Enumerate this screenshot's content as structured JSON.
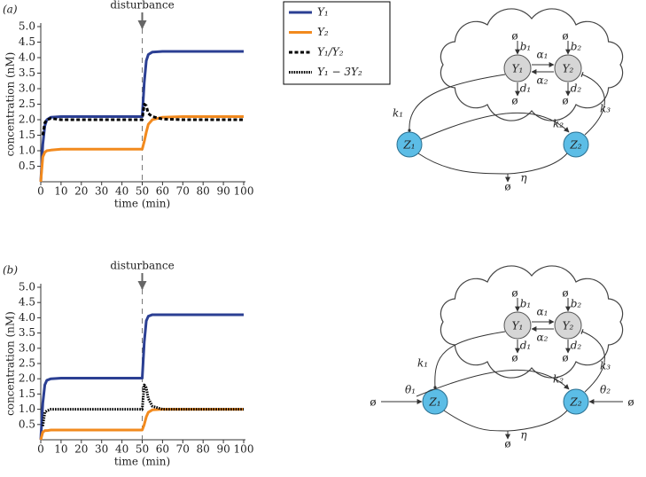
{
  "chart_data": [
    {
      "type": "line",
      "panel": "(a)",
      "ylabel": "concentration (nM)",
      "xlabel": "time (min)",
      "annotation": {
        "text": "disturbance",
        "x": 50
      },
      "xlim": [
        0,
        100
      ],
      "ylim": [
        0,
        5
      ],
      "xticks": [
        0,
        10,
        20,
        30,
        40,
        50,
        60,
        70,
        80,
        90,
        100
      ],
      "yticks": [
        0.5,
        {
          "value": 1,
          "label": "1.0"
        },
        1.5,
        {
          "value": 2,
          "label": "2.0"
        },
        2.5,
        {
          "value": 3,
          "label": "3.0"
        },
        3.5,
        {
          "value": 4,
          "label": "4.0"
        },
        4.5,
        {
          "value": 5,
          "label": "5.0"
        }
      ],
      "x": [
        0,
        1,
        2,
        3,
        5,
        10,
        20,
        30,
        40,
        50,
        51,
        52,
        53,
        55,
        60,
        70,
        80,
        90,
        100
      ],
      "series": [
        {
          "name": "Y₁",
          "color": "#2b3f93",
          "style": "solid",
          "values": [
            0,
            1.2,
            1.8,
            2.0,
            2.08,
            2.1,
            2.1,
            2.1,
            2.1,
            2.1,
            3.2,
            3.9,
            4.1,
            4.18,
            4.2,
            4.2,
            4.2,
            4.2,
            4.2
          ]
        },
        {
          "name": "Y₂",
          "color": "#f28a1e",
          "style": "solid",
          "values": [
            0,
            0.8,
            0.95,
            1.0,
            1.02,
            1.05,
            1.05,
            1.05,
            1.05,
            1.05,
            1.3,
            1.6,
            1.85,
            2.0,
            2.08,
            2.1,
            2.1,
            2.1,
            2.1
          ]
        },
        {
          "name": "Y₁/Y₂",
          "color": "#000000",
          "style": "dashed",
          "values": [
            null,
            1.5,
            1.9,
            2.0,
            2.04,
            2.0,
            2.0,
            2.0,
            2.0,
            2.0,
            2.5,
            2.45,
            2.2,
            2.1,
            2.02,
            2.0,
            2.0,
            2.0,
            2.0
          ]
        }
      ]
    },
    {
      "type": "line",
      "panel": "(b)",
      "ylabel": "concentration (nM)",
      "xlabel": "time (min)",
      "annotation": {
        "text": "disturbance",
        "x": 50
      },
      "xlim": [
        0,
        100
      ],
      "ylim": [
        0,
        5
      ],
      "xticks": [
        0,
        10,
        20,
        30,
        40,
        50,
        60,
        70,
        80,
        90,
        100
      ],
      "yticks": [
        0.5,
        {
          "value": 1,
          "label": "1.0"
        },
        1.5,
        {
          "value": 2,
          "label": "2.0"
        },
        2.5,
        {
          "value": 3,
          "label": "3.0"
        },
        3.5,
        {
          "value": 4,
          "label": "4.0"
        },
        4.5,
        {
          "value": 5,
          "label": "5.0"
        }
      ],
      "x": [
        0,
        1,
        2,
        3,
        5,
        10,
        20,
        30,
        40,
        50,
        51,
        52,
        53,
        55,
        60,
        70,
        80,
        90,
        100
      ],
      "series": [
        {
          "color": "#2b3f93",
          "style": "solid",
          "values": [
            0,
            1.2,
            1.8,
            1.95,
            2.0,
            2.02,
            2.02,
            2.02,
            2.02,
            2.02,
            3.2,
            3.9,
            4.05,
            4.1,
            4.1,
            4.1,
            4.1,
            4.1,
            4.1
          ]
        },
        {
          "color": "#f28a1e",
          "style": "solid",
          "values": [
            0,
            0.25,
            0.3,
            0.3,
            0.32,
            0.32,
            0.32,
            0.32,
            0.32,
            0.32,
            0.5,
            0.75,
            0.9,
            0.98,
            1.0,
            1.0,
            1.0,
            1.0,
            1.0
          ]
        },
        {
          "name": "Y₁ − 3Y₂",
          "color": "#000000",
          "style": "dotted",
          "values": [
            null,
            0.45,
            0.9,
            0.95,
            1.0,
            1.0,
            1.0,
            1.0,
            1.0,
            1.0,
            1.8,
            1.7,
            1.35,
            1.1,
            1.0,
            1.0,
            1.0,
            1.0,
            1.0
          ]
        }
      ]
    }
  ],
  "diagrams": [
    {
      "nodes": [
        "Y₁",
        "Y₂",
        "Z₁",
        "Z₂"
      ],
      "rates": [
        "b₁",
        "d₁",
        "b₂",
        "d₂",
        "α₁",
        "α₂",
        "k₁",
        "k₂",
        "k₃",
        "η"
      ],
      "null_symbol": "ø"
    },
    {
      "nodes": [
        "Y₁",
        "Y₂",
        "Z₁",
        "Z₂"
      ],
      "rates": [
        "b₁",
        "d₁",
        "b₂",
        "d₂",
        "α₁",
        "α₂",
        "k₁",
        "k₂",
        "k₃",
        "η"
      ],
      "null_symbol": "ø",
      "inflows": [
        "θ₁",
        "θ₂"
      ]
    }
  ]
}
